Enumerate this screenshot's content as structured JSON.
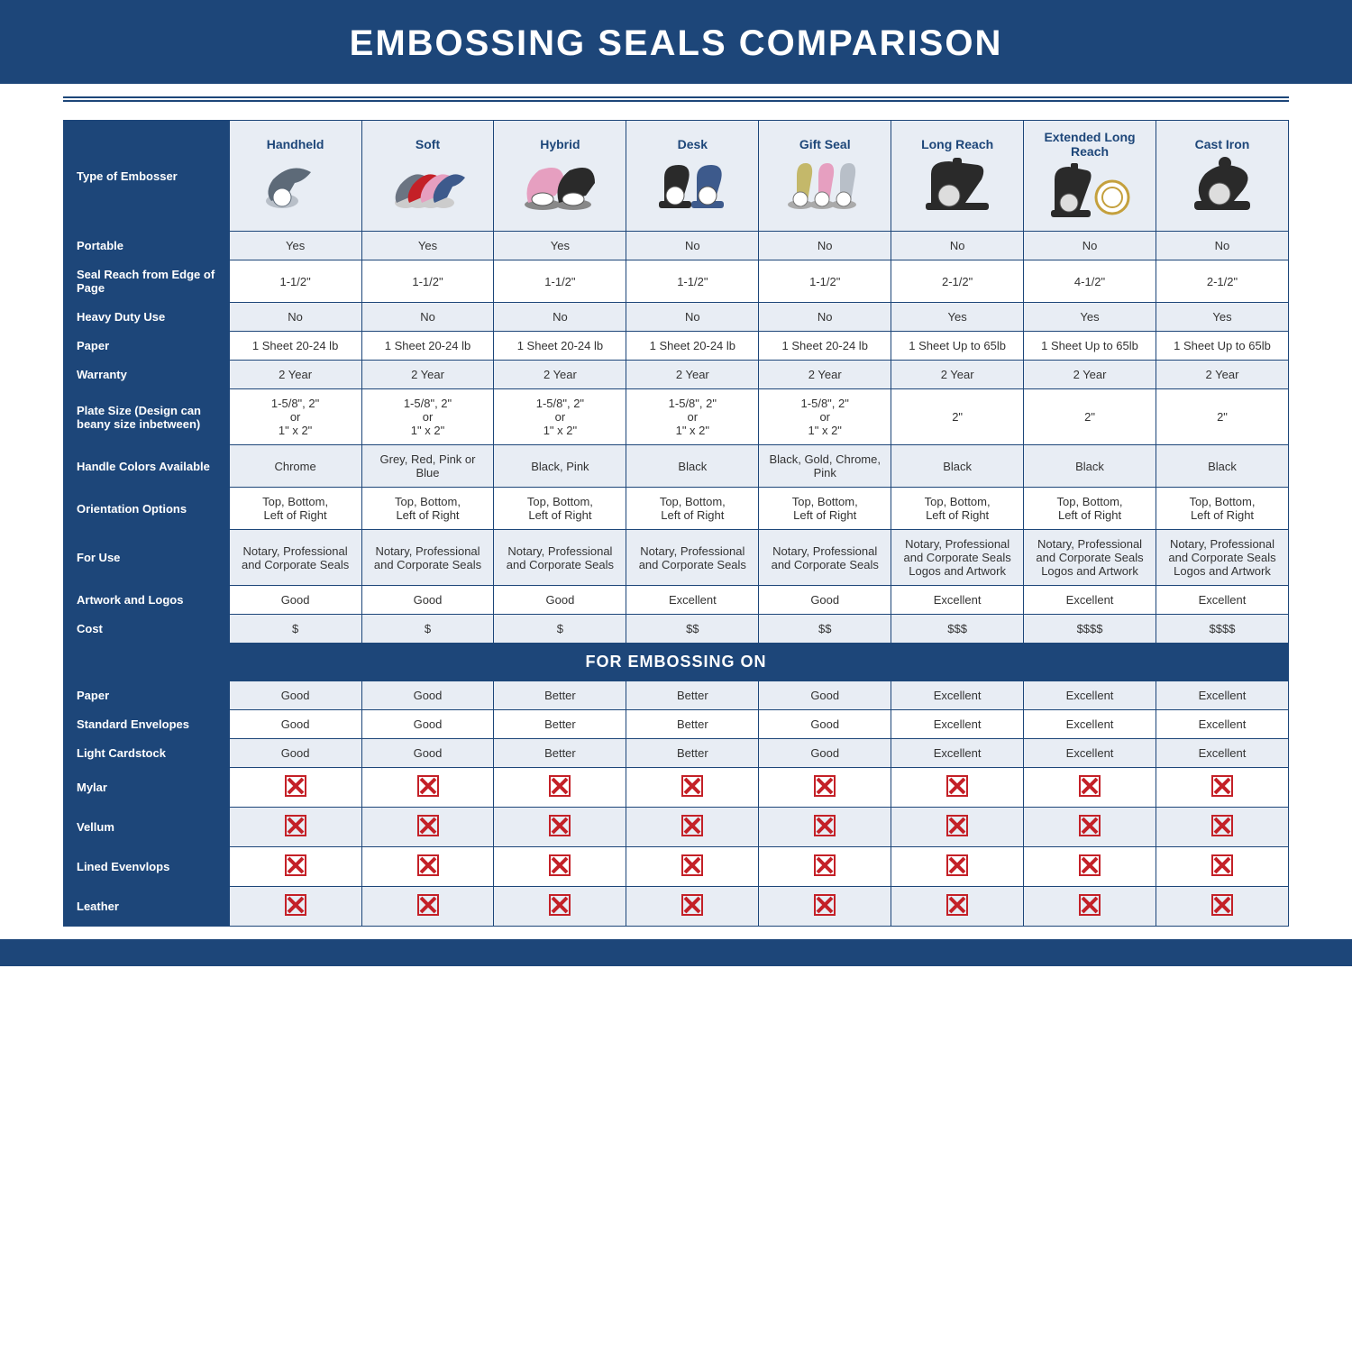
{
  "title": "EMBOSSING SEALS COMPARISON",
  "colors": {
    "brand": "#1d4679",
    "headerBg": "#e8edf4",
    "xRed": "#c42027",
    "altLight": "#e8edf4",
    "altWhite": "#ffffff",
    "text": "#333333"
  },
  "table": {
    "type": "table",
    "label_col_width_pct": 13.5,
    "data_col_width_pct": 10.8,
    "columns": [
      "Handheld",
      "Soft",
      "Hybrid",
      "Desk",
      "Gift Seal",
      "Long Reach",
      "Extended Long Reach",
      "Cast Iron"
    ],
    "rowsTop": [
      {
        "label": "Type of Embosser",
        "is_image_row": true
      },
      {
        "label": "Portable",
        "values": [
          "Yes",
          "Yes",
          "Yes",
          "No",
          "No",
          "No",
          "No",
          "No"
        ]
      },
      {
        "label": "Seal Reach from Edge of Page",
        "values": [
          "1-1/2\"",
          "1-1/2\"",
          "1-1/2\"",
          "1-1/2\"",
          "1-1/2\"",
          "2-1/2\"",
          "4-1/2\"",
          "2-1/2\""
        ]
      },
      {
        "label": "Heavy Duty Use",
        "values": [
          "No",
          "No",
          "No",
          "No",
          "No",
          "Yes",
          "Yes",
          "Yes"
        ]
      },
      {
        "label": "Paper",
        "values": [
          "1 Sheet 20-24 lb",
          "1 Sheet 20-24 lb",
          "1 Sheet 20-24 lb",
          "1 Sheet 20-24 lb",
          "1 Sheet 20-24 lb",
          "1 Sheet Up to 65lb",
          "1 Sheet Up to 65lb",
          "1 Sheet Up to 65lb"
        ]
      },
      {
        "label": "Warranty",
        "values": [
          "2 Year",
          "2 Year",
          "2 Year",
          "2 Year",
          "2 Year",
          "2 Year",
          "2 Year",
          "2 Year"
        ]
      },
      {
        "label": "Plate Size (Design can beany size inbetween)",
        "values": [
          "1-5/8\", 2\"\nor\n1\" x 2\"",
          "1-5/8\", 2\"\nor\n1\" x 2\"",
          "1-5/8\", 2\"\nor\n1\" x 2\"",
          "1-5/8\", 2\"\nor\n1\" x 2\"",
          "1-5/8\", 2\"\nor\n1\" x 2\"",
          "2\"",
          "2\"",
          "2\""
        ]
      },
      {
        "label": "Handle Colors Available",
        "values": [
          "Chrome",
          "Grey, Red, Pink or Blue",
          "Black, Pink",
          "Black",
          "Black, Gold, Chrome, Pink",
          "Black",
          "Black",
          "Black"
        ]
      },
      {
        "label": "Orientation Options",
        "values": [
          "Top, Bottom,\nLeft of Right",
          "Top, Bottom,\nLeft of Right",
          "Top, Bottom,\nLeft of Right",
          "Top, Bottom,\nLeft of Right",
          "Top, Bottom,\nLeft of Right",
          "Top, Bottom,\nLeft of Right",
          "Top, Bottom,\nLeft of Right",
          "Top, Bottom,\nLeft of Right"
        ]
      },
      {
        "label": "For Use",
        "values": [
          "Notary, Professional and Corporate Seals",
          "Notary, Professional and Corporate Seals",
          "Notary, Professional and Corporate Seals",
          "Notary, Professional and Corporate Seals",
          "Notary, Professional and Corporate Seals",
          "Notary, Professional and Corporate Seals Logos and Artwork",
          "Notary, Professional and Corporate Seals Logos and Artwork",
          "Notary, Professional and Corporate Seals Logos and Artwork"
        ]
      },
      {
        "label": "Artwork and Logos",
        "values": [
          "Good",
          "Good",
          "Good",
          "Excellent",
          "Good",
          "Excellent",
          "Excellent",
          "Excellent"
        ]
      },
      {
        "label": "Cost",
        "values": [
          "$",
          "$",
          "$",
          "$$",
          "$$",
          "$$$",
          "$$$$",
          "$$$$"
        ]
      }
    ],
    "section2_title": "FOR EMBOSSING ON",
    "rowsBottom": [
      {
        "label": "Paper",
        "values": [
          "Good",
          "Good",
          "Better",
          "Better",
          "Good",
          "Excellent",
          "Excellent",
          "Excellent"
        ]
      },
      {
        "label": "Standard Envelopes",
        "values": [
          "Good",
          "Good",
          "Better",
          "Better",
          "Good",
          "Excellent",
          "Excellent",
          "Excellent"
        ]
      },
      {
        "label": "Light Cardstock",
        "values": [
          "Good",
          "Good",
          "Better",
          "Better",
          "Good",
          "Excellent",
          "Excellent",
          "Excellent"
        ]
      },
      {
        "label": "Mylar",
        "values": [
          "X",
          "X",
          "X",
          "X",
          "X",
          "X",
          "X",
          "X"
        ]
      },
      {
        "label": "Vellum",
        "values": [
          "X",
          "X",
          "X",
          "X",
          "X",
          "X",
          "X",
          "X"
        ]
      },
      {
        "label": "Lined Evenvlops",
        "values": [
          "X",
          "X",
          "X",
          "X",
          "X",
          "X",
          "X",
          "X"
        ]
      },
      {
        "label": "Leather",
        "values": [
          "X",
          "X",
          "X",
          "X",
          "X",
          "X",
          "X",
          "X"
        ]
      }
    ],
    "embosser_images": {
      "Handheld": {
        "shape": "handheld",
        "colors": [
          "#b8bfc8",
          "#5d6a78"
        ]
      },
      "Soft": {
        "shape": "handheld_multi",
        "colors": [
          "#6b7482",
          "#c42027",
          "#e69fc0",
          "#3d5a8c"
        ]
      },
      "Hybrid": {
        "shape": "hybrid",
        "colors": [
          "#e69fc0",
          "#2a2a2a"
        ]
      },
      "Desk": {
        "shape": "desk",
        "colors": [
          "#2a2a2a",
          "#3d5a8c"
        ]
      },
      "Gift Seal": {
        "shape": "gift",
        "colors": [
          "#c4b86a",
          "#e69fc0",
          "#b8bfc8"
        ]
      },
      "Long Reach": {
        "shape": "longreach",
        "colors": [
          "#2a2a2a"
        ]
      },
      "Extended Long Reach": {
        "shape": "ext_longreach",
        "colors": [
          "#2a2a2a",
          "#c4a03d"
        ]
      },
      "Cast Iron": {
        "shape": "castiron",
        "colors": [
          "#2a2a2a"
        ]
      }
    }
  }
}
